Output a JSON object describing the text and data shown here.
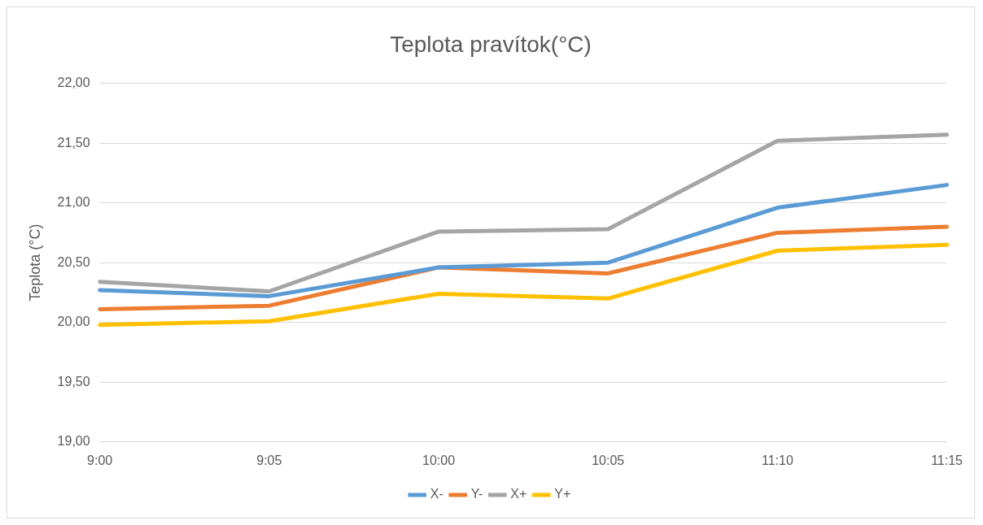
{
  "chart_data": {
    "type": "line",
    "title": "Teplota pravítok(°C)",
    "ylabel": "Teplota (°C)",
    "categories": [
      "9:00",
      "9:05",
      "10:00",
      "10:05",
      "11:10",
      "11:15"
    ],
    "series": [
      {
        "name": "X-",
        "color": "#5b9bd5",
        "values": [
          20.27,
          20.22,
          20.46,
          20.5,
          20.96,
          21.15
        ]
      },
      {
        "name": "Y-",
        "color": "#ed7d31",
        "values": [
          20.11,
          20.14,
          20.46,
          20.41,
          20.75,
          20.8
        ]
      },
      {
        "name": "X+",
        "color": "#a5a5a5",
        "values": [
          20.34,
          20.26,
          20.76,
          20.78,
          21.52,
          21.57
        ]
      },
      {
        "name": "Y+",
        "color": "#ffc000",
        "values": [
          19.98,
          20.01,
          20.24,
          20.2,
          20.6,
          20.65
        ]
      }
    ],
    "ylim": [
      19,
      22
    ],
    "yticks": [
      {
        "value": 19,
        "label": "19,00"
      },
      {
        "value": 19.5,
        "label": "19,50"
      },
      {
        "value": 20,
        "label": "20,00"
      },
      {
        "value": 20.5,
        "label": "20,50"
      },
      {
        "value": 21,
        "label": "21,00"
      },
      {
        "value": 21.5,
        "label": "21,50"
      },
      {
        "value": 22,
        "label": "22,00"
      }
    ],
    "grid": "y",
    "legend": "bottom",
    "marker": "none",
    "line_style": "solid"
  }
}
